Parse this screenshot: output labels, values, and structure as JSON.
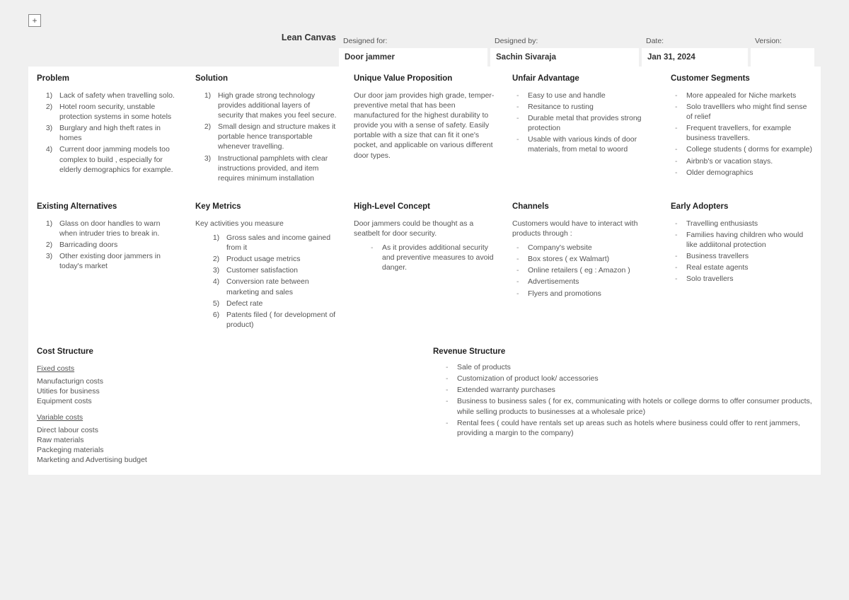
{
  "plusLabel": "+",
  "title": "Lean Canvas",
  "header": {
    "designedForLabel": "Designed for:",
    "designedForValue": "Door jammer",
    "designedByLabel": "Designed by:",
    "designedByValue": "Sachin Sivaraja",
    "dateLabel": "Date:",
    "dateValue": "Jan 31, 2024",
    "versionLabel": "Version:",
    "versionValue": ""
  },
  "problem": {
    "title": "Problem",
    "items": [
      "Lack of safety when travelling solo.",
      "Hotel room security, unstable protection systems in some hotels",
      "Burglary and high theft rates in homes",
      "Current door jamming models too complex to build , especially for elderly demographics for example."
    ]
  },
  "solution": {
    "title": "Solution",
    "items": [
      "High grade strong technology provides additional layers of security that makes you feel secure.",
      "Small design and structure makes it portable hence transportable whenever travelling.",
      "Instructional pamphlets with clear instructions provided, and item requires minimum installation"
    ]
  },
  "uvp": {
    "title": "Unique Value Proposition",
    "text": "Our door jam provides high grade, temper- preventive metal that has been manufactured for the highest durability to provide you with a sense of safety. Easily portable with a size that can fit it one's pocket, and applicable on various different door types."
  },
  "unfair": {
    "title": "Unfair Advantage",
    "items": [
      "Easy to use and handle",
      "Resitance to rusting",
      "Durable metal that provides strong protection",
      "Usable with various kinds of door materials, from metal to woord"
    ]
  },
  "segments": {
    "title": "Customer Segments",
    "items": [
      "More appealed for Niche markets",
      "Solo travelllers who might find sense of relief",
      "Frequent travellers, for example business travellers.",
      "College students ( dorms for example)",
      "Airbnb's or vacation stays.",
      "Older demographics"
    ]
  },
  "existing": {
    "title": "Existing Alternatives",
    "items": [
      "Glass on door handles to warn when intruder tries to break in.",
      "Barricading doors",
      "Other existing door jammers in today's market"
    ]
  },
  "metrics": {
    "title": "Key Metrics",
    "sub": "Key activities you measure",
    "items": [
      "Gross sales and income gained from it",
      "Product usage metrics",
      "Customer satisfaction",
      "Conversion rate between marketing and sales",
      "Defect rate",
      "Patents filed ( for development of product)"
    ]
  },
  "concept": {
    "title": "High-Level Concept",
    "text": "Door jammers could be thought as a seatbelt for door security.",
    "items": [
      "As it provides additional security and preventive measures to avoid danger."
    ]
  },
  "channels": {
    "title": "Channels",
    "sub": "Customers would have to interact with products through :",
    "items": [
      "Company's website",
      "Box stores ( ex Walmart)",
      "Online retailers ( eg : Amazon )",
      "Advertisements",
      "Flyers and promotions"
    ]
  },
  "early": {
    "title": "Early Adopters",
    "items": [
      "Travelling enthusiasts",
      "Families having children who would like addiitonal protection",
      "Business travellers",
      "Real estate agents",
      "Solo travellers"
    ]
  },
  "cost": {
    "title": "Cost Structure",
    "fixedLabel": "Fixed costs",
    "fixed": [
      "Manufacturign costs",
      "Utities for business",
      "Equipment costs"
    ],
    "variableLabel": "Variable costs",
    "variable": [
      "Direct labour costs",
      "Raw materials",
      "Packeging materials",
      "Marketing and Advertising budget"
    ]
  },
  "revenue": {
    "title": "Revenue Structure",
    "items": [
      "Sale of products",
      "Customization of product look/ accessories",
      "Extended warranty purchases",
      "Business to business sales ( for ex, communicating with hotels or college dorms to offer consumer products, while selling products to businesses at a wholesale price)",
      "Rental fees ( could have rentals set up areas such as hotels where business could offer to rent jammers, providing a margin to the company)"
    ]
  }
}
